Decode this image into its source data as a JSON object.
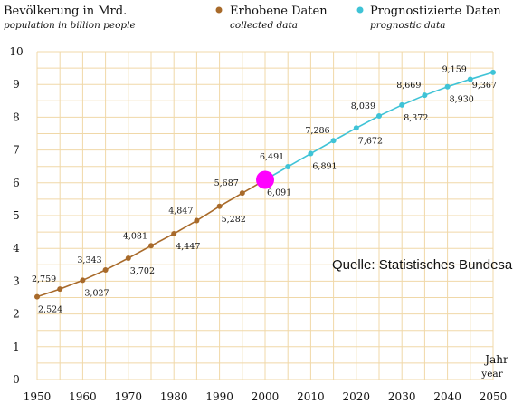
{
  "chart_data": {
    "type": "line",
    "x": [
      1950,
      1955,
      1960,
      1965,
      1970,
      1975,
      1980,
      1985,
      1990,
      1995,
      2000,
      2005,
      2010,
      2015,
      2020,
      2025,
      2030,
      2035,
      2040,
      2045,
      2050
    ],
    "series": [
      {
        "name": "Erhobene Daten",
        "name_en": "collected data",
        "color": "#a86a2a",
        "x": [
          1950,
          1955,
          1960,
          1965,
          1970,
          1975,
          1980,
          1985,
          1990,
          1995,
          2000
        ],
        "values": [
          2.524,
          2.759,
          3.027,
          3.343,
          3.702,
          4.081,
          4.447,
          4.847,
          5.282,
          5.687,
          6.091
        ]
      },
      {
        "name": "Prognostizierte Daten",
        "name_en": "prognostic data",
        "color": "#3fc3d6",
        "x": [
          2000,
          2005,
          2010,
          2015,
          2020,
          2025,
          2030,
          2035,
          2040,
          2045,
          2050
        ],
        "values": [
          6.091,
          6.491,
          6.891,
          7.286,
          7.672,
          8.039,
          8.372,
          8.669,
          8.93,
          9.159,
          9.367
        ]
      }
    ],
    "data_labels": [
      {
        "x": 1950,
        "text": "2,524",
        "pos": "below"
      },
      {
        "x": 1955,
        "text": "2,759",
        "pos": "above"
      },
      {
        "x": 1960,
        "text": "3,027",
        "pos": "below"
      },
      {
        "x": 1965,
        "text": "3,343",
        "pos": "above"
      },
      {
        "x": 1970,
        "text": "3,702",
        "pos": "below"
      },
      {
        "x": 1975,
        "text": "4,081",
        "pos": "above"
      },
      {
        "x": 1980,
        "text": "4,447",
        "pos": "below"
      },
      {
        "x": 1985,
        "text": "4,847",
        "pos": "above"
      },
      {
        "x": 1990,
        "text": "5,282",
        "pos": "below"
      },
      {
        "x": 1995,
        "text": "5,687",
        "pos": "above"
      },
      {
        "x": 2000,
        "text": "6,091",
        "pos": "below"
      },
      {
        "x": 2005,
        "text": "6,491",
        "pos": "above"
      },
      {
        "x": 2010,
        "text": "6,891",
        "pos": "below"
      },
      {
        "x": 2015,
        "text": "7,286",
        "pos": "above"
      },
      {
        "x": 2020,
        "text": "7,672",
        "pos": "below"
      },
      {
        "x": 2025,
        "text": "8,039",
        "pos": "above"
      },
      {
        "x": 2030,
        "text": "8,372",
        "pos": "below"
      },
      {
        "x": 2035,
        "text": "8,669",
        "pos": "above"
      },
      {
        "x": 2040,
        "text": "8,930",
        "pos": "below"
      },
      {
        "x": 2045,
        "text": "9,159",
        "pos": "above"
      },
      {
        "x": 2050,
        "text": "9,367",
        "pos": "below"
      }
    ],
    "highlight": {
      "x": 2000,
      "value": 6.091,
      "color": "#ff00ff"
    },
    "ylabel": "Bevölkerung in Mrd.",
    "ylabel_en": "population in billion people",
    "xlabel": "Jahr",
    "xlabel_en": "year",
    "xlim": [
      1950,
      2050
    ],
    "ylim": [
      0,
      10
    ],
    "x_ticks": [
      1950,
      1960,
      1970,
      1980,
      1990,
      2000,
      2010,
      2020,
      2030,
      2040,
      2050
    ],
    "y_ticks": [
      0,
      1,
      2,
      3,
      4,
      5,
      6,
      7,
      8,
      9,
      10
    ],
    "grid": true,
    "grid_color": "#f0d8a8",
    "legend_position": "top",
    "source": "Quelle: Statistisches Bundesamt"
  }
}
